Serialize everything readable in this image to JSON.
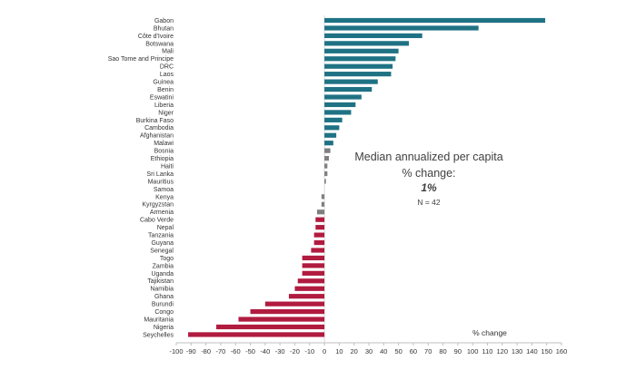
{
  "chart_data": {
    "type": "bar",
    "orientation": "horizontal",
    "xlabel": "% change",
    "xlim": [
      -100,
      160
    ],
    "xticks": [
      -100,
      -90,
      -80,
      -70,
      -60,
      -50,
      -40,
      -30,
      -20,
      -10,
      0,
      10,
      20,
      30,
      40,
      50,
      60,
      70,
      80,
      90,
      100,
      110,
      120,
      130,
      140,
      150,
      160
    ],
    "colors": {
      "high": "#1f7284",
      "mid": "#7f7f7f",
      "low": "#b11b3f"
    },
    "categories": [
      "Gabon",
      "Bhutan",
      "Côte d'Ivoire",
      "Botswana",
      "Mali",
      "Sao Tome and Principe",
      "DRC",
      "Laos",
      "Guinea",
      "Benin",
      "Eswatini",
      "Liberia",
      "Niger",
      "Burkina Faso",
      "Cambodia",
      "Afghanistan",
      "Malawi",
      "Bosnia",
      "Ethiopia",
      "Haiti",
      "Sri Lanka",
      "Mauritius",
      "Samoa",
      "Kenya",
      "Kyrgyzstan",
      "Armenia",
      "Cabo Verde",
      "Nepal",
      "Tanzania",
      "Guyana",
      "Senegal",
      "Togo",
      "Zambia",
      "Uganda",
      "Tajikistan",
      "Namibia",
      "Ghana",
      "Burundi",
      "Congo",
      "Mauritania",
      "Nigeria",
      "Seychelles"
    ],
    "values": [
      149,
      104,
      66,
      57,
      50,
      48,
      46,
      45,
      36,
      32,
      25,
      21,
      18,
      12,
      10,
      8,
      6,
      4,
      3,
      2,
      2,
      1,
      0,
      -2,
      -2,
      -5,
      -6,
      -6,
      -7,
      -7,
      -9,
      -15,
      -15,
      -15,
      -18,
      -20,
      -24,
      -40,
      -50,
      -58,
      -73,
      -92
    ],
    "annotation": {
      "title_line1": "Median annualized per capita",
      "title_line2": "% change:",
      "value": "1%",
      "n": "N = 42"
    }
  }
}
